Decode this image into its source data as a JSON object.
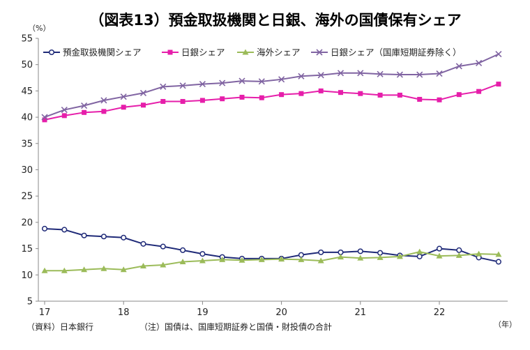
{
  "chart_data": {
    "type": "line",
    "title": "（図表13）預金取扱機関と日銀、海外の国債保有シェア",
    "y_unit": "（%）",
    "x_unit": "（年）",
    "ylim": [
      5,
      55
    ],
    "yticks": [
      5,
      10,
      15,
      20,
      25,
      30,
      35,
      40,
      45,
      50,
      55
    ],
    "xlim": [
      2017,
      2022.9
    ],
    "xticks": [
      {
        "value": 2017,
        "label": "17"
      },
      {
        "value": 2018,
        "label": "18"
      },
      {
        "value": 2019,
        "label": "19"
      },
      {
        "value": 2020,
        "label": "20"
      },
      {
        "value": 2021,
        "label": "21"
      },
      {
        "value": 2022,
        "label": "22"
      }
    ],
    "grid": false,
    "legend_position": "top",
    "x": [
      2017.0,
      2017.25,
      2017.5,
      2017.75,
      2018.0,
      2018.25,
      2018.5,
      2018.75,
      2019.0,
      2019.25,
      2019.5,
      2019.75,
      2020.0,
      2020.25,
      2020.5,
      2020.75,
      2021.0,
      2021.25,
      2021.5,
      2021.75,
      2022.0,
      2022.25,
      2022.5,
      2022.75
    ],
    "series": [
      {
        "name": "預金取扱機関シェア",
        "color": "#1f2a78",
        "marker": "circle",
        "values": [
          18.8,
          18.6,
          17.5,
          17.3,
          17.1,
          15.9,
          15.4,
          14.7,
          14.0,
          13.4,
          13.1,
          13.1,
          13.1,
          13.8,
          14.3,
          14.3,
          14.5,
          14.2,
          13.7,
          13.5,
          15.0,
          14.7,
          13.3,
          12.5
        ]
      },
      {
        "name": "日銀シェア",
        "color": "#e61eaa",
        "marker": "square",
        "values": [
          39.5,
          40.3,
          40.9,
          41.1,
          41.9,
          42.3,
          43.0,
          43.0,
          43.2,
          43.5,
          43.8,
          43.7,
          44.3,
          44.5,
          45.0,
          44.7,
          44.5,
          44.2,
          44.2,
          43.4,
          43.3,
          44.3,
          44.9,
          46.3
        ]
      },
      {
        "name": "海外シェア",
        "color": "#9bbb59",
        "marker": "triangle",
        "values": [
          10.8,
          10.8,
          11.0,
          11.2,
          11.0,
          11.7,
          11.9,
          12.5,
          12.7,
          12.9,
          12.8,
          12.9,
          13.0,
          12.9,
          12.7,
          13.4,
          13.2,
          13.3,
          13.5,
          14.4,
          13.6,
          13.7,
          14.0,
          13.9
        ]
      },
      {
        "name": "日銀シェア（国庫短期証券除く）",
        "color": "#8064a2",
        "marker": "x",
        "values": [
          40.0,
          41.4,
          42.2,
          43.2,
          43.9,
          44.6,
          45.8,
          46.0,
          46.3,
          46.5,
          46.9,
          46.8,
          47.2,
          47.8,
          48.0,
          48.4,
          48.4,
          48.2,
          48.1,
          48.1,
          48.3,
          49.7,
          50.3,
          52.0
        ]
      }
    ],
    "footnotes": [
      "（資料）日本銀行",
      "（注）国債は、国庫短期証券と国債・財投債の合計"
    ]
  }
}
